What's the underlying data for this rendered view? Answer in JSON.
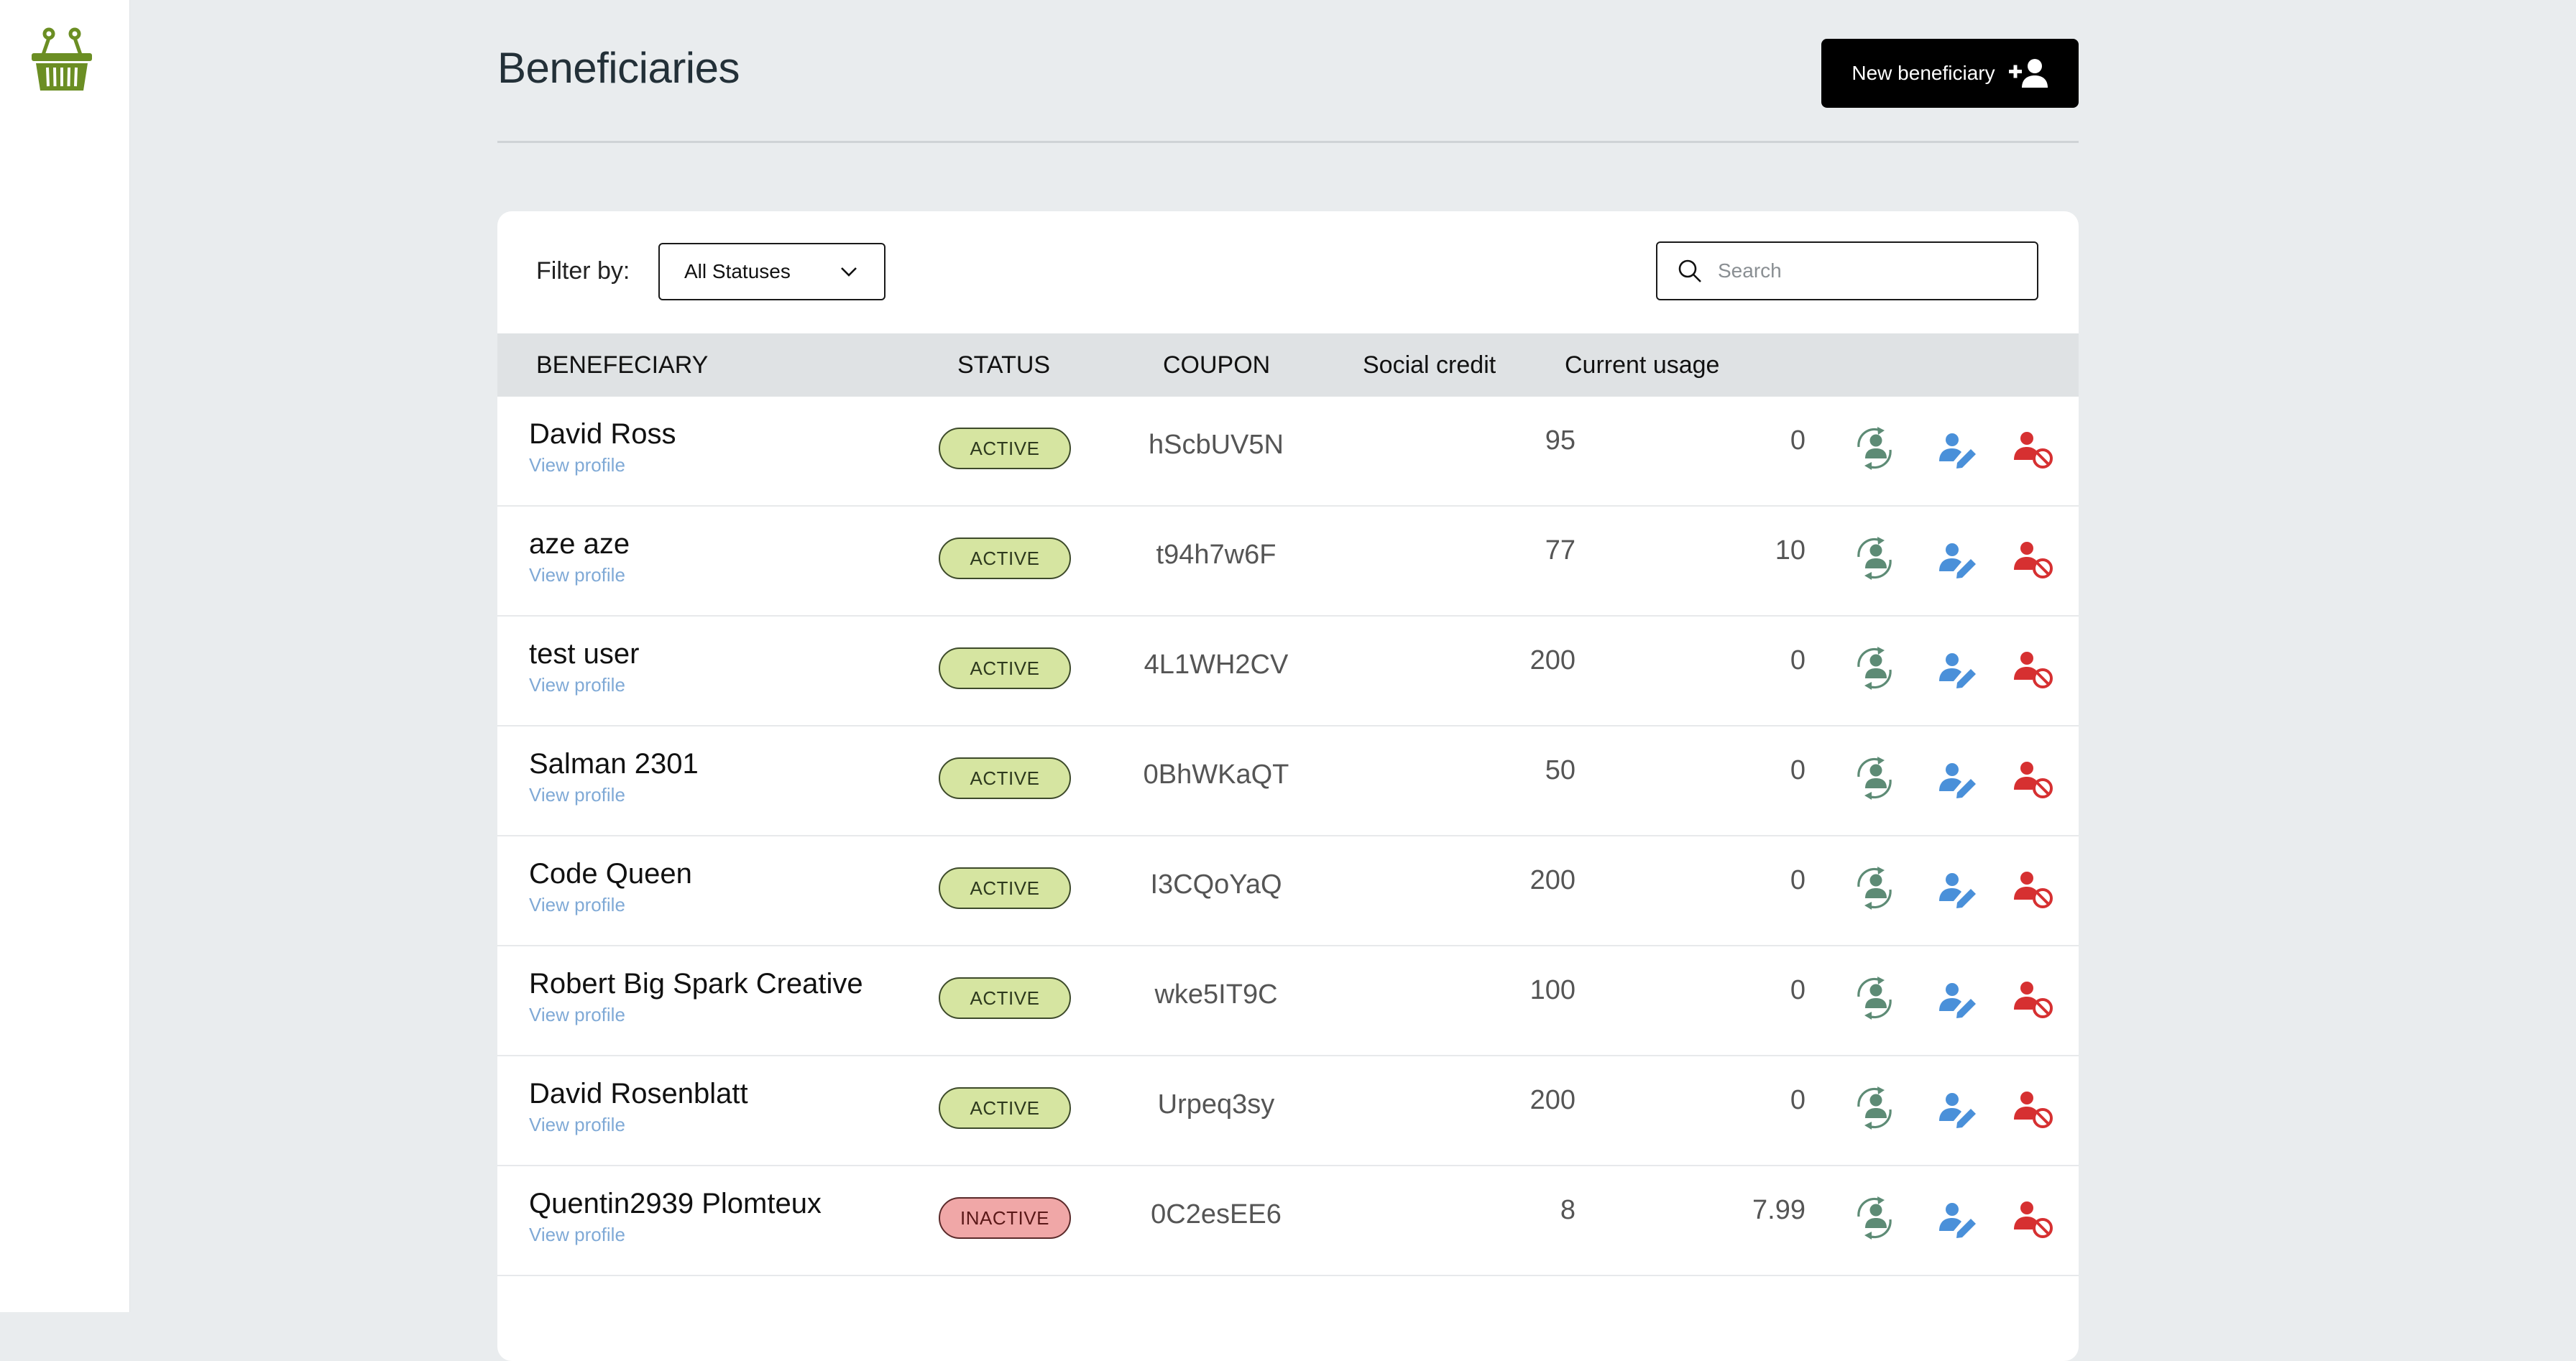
{
  "header": {
    "title": "Beneficiaries",
    "new_button_label": "New beneficiary"
  },
  "filter": {
    "label": "Filter by:",
    "selected": "All Statuses"
  },
  "search": {
    "placeholder": "Search",
    "value": ""
  },
  "table": {
    "headers": {
      "beneficiary": "BENEFECIARY",
      "status": "STATUS",
      "coupon": "COUPON",
      "social_credit": "Social credit",
      "current_usage": "Current usage"
    },
    "view_profile_label": "View profile",
    "rows": [
      {
        "name": "David Ross",
        "status": "ACTIVE",
        "coupon": "hScbUV5N",
        "credit": "95",
        "usage": "0"
      },
      {
        "name": "aze aze",
        "status": "ACTIVE",
        "coupon": "t94h7w6F",
        "credit": "77",
        "usage": "10"
      },
      {
        "name": "test user",
        "status": "ACTIVE",
        "coupon": "4L1WH2CV",
        "credit": "200",
        "usage": "0"
      },
      {
        "name": "Salman 2301",
        "status": "ACTIVE",
        "coupon": "0BhWKaQT",
        "credit": "50",
        "usage": "0"
      },
      {
        "name": "Code Queen",
        "status": "ACTIVE",
        "coupon": "I3CQoYaQ",
        "credit": "200",
        "usage": "0"
      },
      {
        "name": "Robert Big Spark Creative",
        "status": "ACTIVE",
        "coupon": "wke5IT9C",
        "credit": "100",
        "usage": "0"
      },
      {
        "name": "David Rosenblatt",
        "status": "ACTIVE",
        "coupon": "Urpeq3sy",
        "credit": "200",
        "usage": "0"
      },
      {
        "name": "Quentin2939 Plomteux",
        "status": "INACTIVE",
        "coupon": "0C2esEE6",
        "credit": "8",
        "usage": "7.99"
      }
    ]
  },
  "colors": {
    "active_badge": "#d6e5a1",
    "inactive_badge": "#f0a7a7",
    "renew_icon": "#5d8b75",
    "edit_icon": "#4a90d9",
    "block_icon": "#d63031",
    "logo": "#6b8e23"
  },
  "icons": {
    "logo": "basket-icon",
    "new_button": "user-plus-icon",
    "filter_dropdown": "chevron-down-icon",
    "search": "search-icon",
    "row_actions": [
      "user-renew-icon",
      "user-edit-icon",
      "user-block-icon"
    ]
  }
}
